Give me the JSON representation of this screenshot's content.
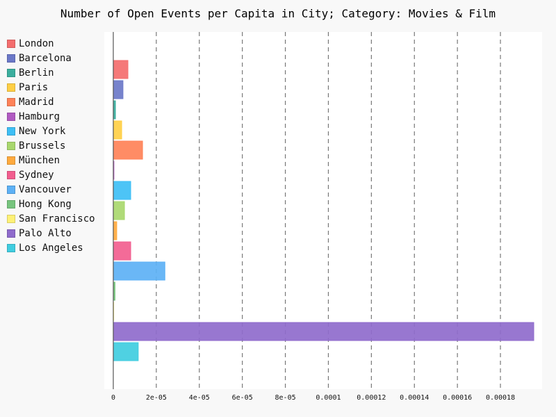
{
  "chart_data": {
    "type": "bar",
    "orientation": "horizontal",
    "title": "Number of Open Events per Capita in City; Category: Movies & Film",
    "xlim": [
      0,
      0.000197
    ],
    "x_ticks": [
      "0",
      "2e-05",
      "4e-05",
      "6e-05",
      "8e-05",
      "0.0001",
      "0.00012",
      "0.00014",
      "0.00016",
      "0.00018"
    ],
    "x_tick_values": [
      0,
      2e-05,
      4e-05,
      6e-05,
      8e-05,
      0.0001,
      0.00012,
      0.00014,
      0.00016,
      0.00018
    ],
    "grid": "vertical-dashed",
    "legend_position": "left",
    "series": [
      {
        "name": "London",
        "value": 6.8e-06,
        "color": "#f46e6e"
      },
      {
        "name": "Barcelona",
        "value": 4.5e-06,
        "color": "#6b78c8"
      },
      {
        "name": "Berlin",
        "value": 1e-06,
        "color": "#3bae9e"
      },
      {
        "name": "Paris",
        "value": 3.9e-06,
        "color": "#ffcf45"
      },
      {
        "name": "Madrid",
        "value": 1.36e-05,
        "color": "#ff8258"
      },
      {
        "name": "Hamburg",
        "value": 3e-07,
        "color": "#b15bc2"
      },
      {
        "name": "New York",
        "value": 8.1e-06,
        "color": "#3ebff5"
      },
      {
        "name": "Brussels",
        "value": 5.2e-06,
        "color": "#a9d86e"
      },
      {
        "name": "München",
        "value": 1.6e-06,
        "color": "#ffaa3e"
      },
      {
        "name": "Sydney",
        "value": 8.1e-06,
        "color": "#f25e8f"
      },
      {
        "name": "Vancouver",
        "value": 2.4e-05,
        "color": "#5db1f5"
      },
      {
        "name": "Hong Kong",
        "value": 8e-07,
        "color": "#77c57e"
      },
      {
        "name": "San Francisco",
        "value": 2e-07,
        "color": "#fff176"
      },
      {
        "name": "Palo Alto",
        "value": 0.0001955,
        "color": "#8f6bcc"
      },
      {
        "name": "Los Angeles",
        "value": 1.16e-05,
        "color": "#40cde0"
      }
    ]
  }
}
